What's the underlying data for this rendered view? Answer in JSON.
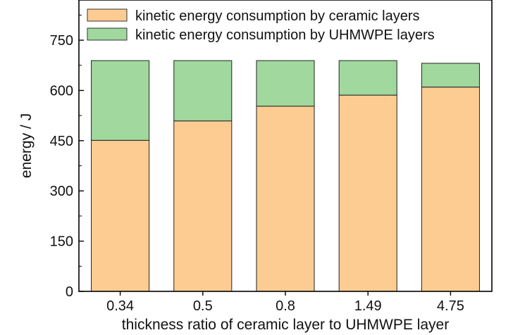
{
  "chart_data": {
    "type": "bar",
    "stacked": true,
    "categories": [
      "0.34",
      "0.5",
      "0.8",
      "1.49",
      "4.75"
    ],
    "series": [
      {
        "name": "kinetic energy consumption by ceramic layers",
        "color": "#fdcc92",
        "values": [
          451,
          509,
          553,
          586,
          610
        ]
      },
      {
        "name": "kinetic energy consumption by UHMWPE layers",
        "color": "#a0d89e",
        "values": [
          238,
          180,
          136,
          103,
          71
        ]
      }
    ],
    "xlabel": "thickness ratio of ceramic layer to UHMWPE layer",
    "ylabel": "energy / J",
    "ylim": [
      0,
      870
    ],
    "yticks": [
      0,
      150,
      300,
      450,
      600,
      750
    ],
    "grid": false,
    "legend": "top-left"
  }
}
